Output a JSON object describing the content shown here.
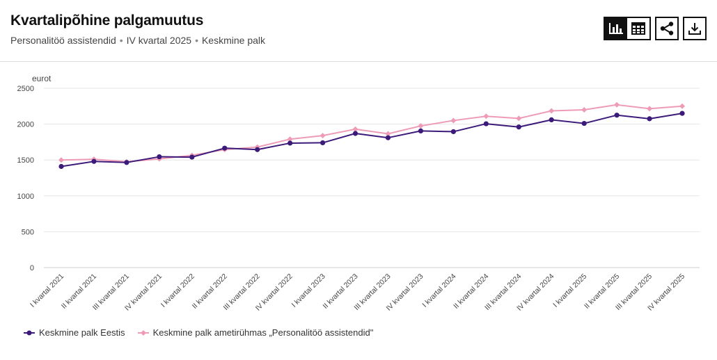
{
  "header": {
    "title": "Kvartalipõhine palgamuutus",
    "subtitle_parts": [
      "Personalitöö assistendid",
      "IV kvartal 2025",
      "Keskmine palk"
    ]
  },
  "toolbar": {
    "buttons": [
      {
        "name": "chart-view-button",
        "icon": "bar-chart-icon",
        "active": true
      },
      {
        "name": "table-view-button",
        "icon": "table-icon",
        "active": false
      },
      {
        "name": "share-button",
        "icon": "share-icon",
        "active": false
      },
      {
        "name": "download-button",
        "icon": "download-icon",
        "active": false
      }
    ]
  },
  "chart_data": {
    "type": "line",
    "ylabel": "eurot",
    "ylim": [
      0,
      2500
    ],
    "yticks": [
      0,
      500,
      1000,
      1500,
      2000,
      2500
    ],
    "grid": true,
    "legend_position": "bottom-left",
    "categories": [
      "I kvartal 2021",
      "II kvartal 2021",
      "III kvartal 2021",
      "IV kvartal 2021",
      "I kvartal 2022",
      "II kvartal 2022",
      "III kvartal 2022",
      "IV kvartal 2022",
      "I kvartal 2023",
      "II kvartal 2023",
      "III kvartal 2023",
      "IV kvartal 2023",
      "I kvartal 2024",
      "II kvartal 2024",
      "III kvartal 2024",
      "IV kvartal 2024",
      "I kvartal 2025",
      "II kvartal 2025",
      "III kvartal 2025",
      "IV kvartal 2025"
    ],
    "series": [
      {
        "name": "Keskmine palk Eestis",
        "color": "#3b1a7a",
        "marker": "circle",
        "values": [
          1410,
          1480,
          1465,
          1545,
          1540,
          1665,
          1645,
          1735,
          1740,
          1870,
          1810,
          1905,
          1895,
          2005,
          1960,
          2060,
          2010,
          2125,
          2075,
          2150
        ]
      },
      {
        "name": "Keskmine palk ametirühmas „Personalitöö assistendid\"",
        "color": "#ee9bb6",
        "marker": "diamond",
        "values": [
          1500,
          1510,
          1475,
          1515,
          1565,
          1645,
          1680,
          1790,
          1840,
          1930,
          1865,
          1975,
          2050,
          2110,
          2080,
          2185,
          2200,
          2270,
          2215,
          2250
        ]
      }
    ]
  }
}
